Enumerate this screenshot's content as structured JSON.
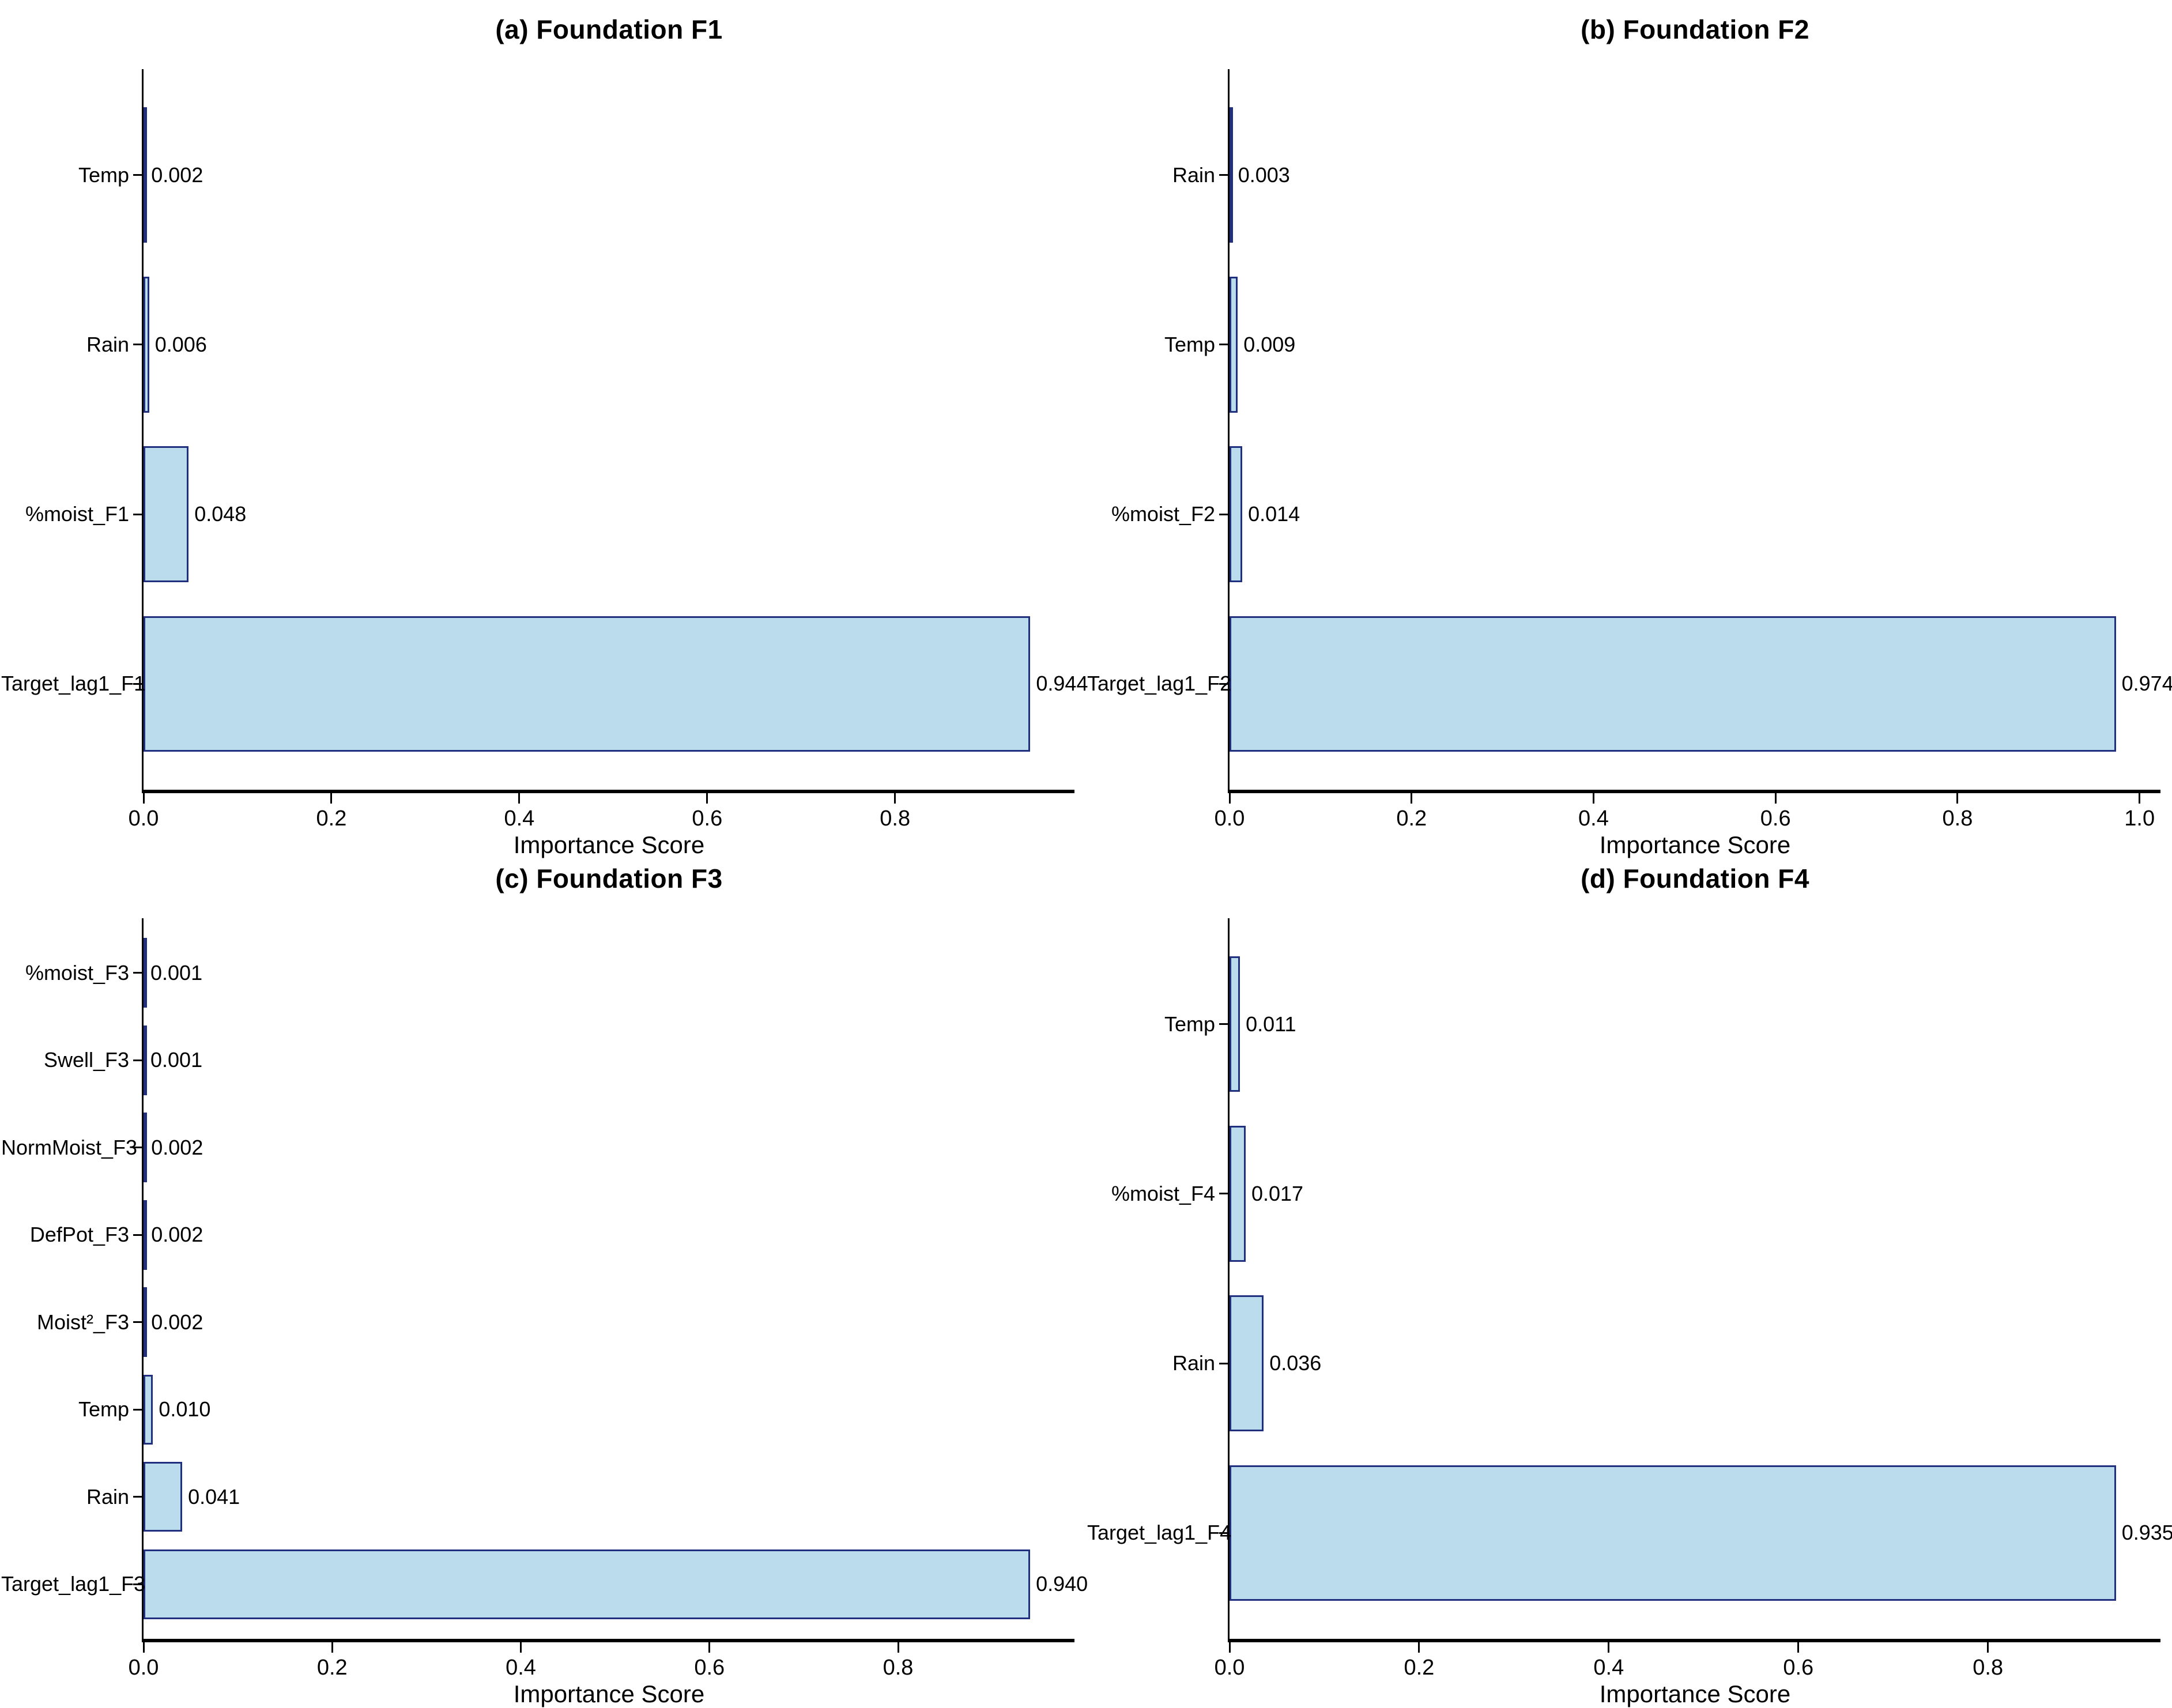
{
  "figure": {
    "background": "#ffffff",
    "bar_fill": "#bbdcec",
    "bar_edge": "#20307f",
    "axis_color": "#000000",
    "value_format_decimals": 3
  },
  "chart_data": [
    {
      "type": "bar",
      "orientation": "horizontal",
      "title": "(a) Foundation F1",
      "xlabel": "Importance Score",
      "categories_top_to_bottom": [
        "Temp",
        "Rain",
        "%moist_F1",
        "Target_lag1_F1"
      ],
      "values": [
        0.002,
        0.006,
        0.048,
        0.944
      ],
      "value_labels": [
        "0.002",
        "0.006",
        "0.048",
        "0.944"
      ],
      "x_ticks": [
        "0.0",
        "0.2",
        "0.4",
        "0.6",
        "0.8"
      ],
      "xlim": [
        0,
        0.991
      ],
      "grid": false,
      "legend": "none"
    },
    {
      "type": "bar",
      "orientation": "horizontal",
      "title": "(b) Foundation F2",
      "xlabel": "Importance Score",
      "categories_top_to_bottom": [
        "Rain",
        "Temp",
        "%moist_F2",
        "Target_lag1_F2"
      ],
      "values": [
        0.003,
        0.009,
        0.014,
        0.974
      ],
      "value_labels": [
        "0.003",
        "0.009",
        "0.014",
        "0.974"
      ],
      "x_ticks": [
        "0.0",
        "0.2",
        "0.4",
        "0.6",
        "0.8",
        "1.0"
      ],
      "xlim": [
        0,
        1.023
      ],
      "grid": false,
      "legend": "none"
    },
    {
      "type": "bar",
      "orientation": "horizontal",
      "title": "(c) Foundation F3",
      "xlabel": "Importance Score",
      "categories_top_to_bottom": [
        "%moist_F3",
        "Swell_F3",
        "NormMoist_F3",
        "DefPot_F3",
        "Moist²_F3",
        "Temp",
        "Rain",
        "Target_lag1_F3"
      ],
      "values": [
        0.001,
        0.001,
        0.002,
        0.002,
        0.002,
        0.01,
        0.041,
        0.94
      ],
      "value_labels": [
        "0.001",
        "0.001",
        "0.002",
        "0.002",
        "0.002",
        "0.010",
        "0.041",
        "0.940"
      ],
      "x_ticks": [
        "0.0",
        "0.2",
        "0.4",
        "0.6",
        "0.8"
      ],
      "xlim": [
        0,
        0.987
      ],
      "grid": false,
      "legend": "none"
    },
    {
      "type": "bar",
      "orientation": "horizontal",
      "title": "(d) Foundation F4",
      "xlabel": "Importance Score",
      "categories_top_to_bottom": [
        "Temp",
        "%moist_F4",
        "Rain",
        "Target_lag1_F4"
      ],
      "values": [
        0.011,
        0.017,
        0.036,
        0.935
      ],
      "value_labels": [
        "0.011",
        "0.017",
        "0.036",
        "0.935"
      ],
      "x_ticks": [
        "0.0",
        "0.2",
        "0.4",
        "0.6",
        "0.8"
      ],
      "xlim": [
        0,
        0.982
      ],
      "grid": false,
      "legend": "none"
    }
  ]
}
